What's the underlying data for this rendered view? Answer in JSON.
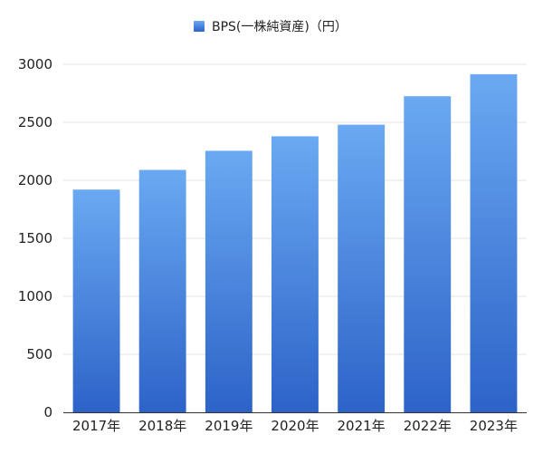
{
  "chart_data": {
    "type": "bar",
    "title": "",
    "xlabel": "",
    "ylabel": "",
    "categories": [
      "2017年",
      "2018年",
      "2019年",
      "2020年",
      "2021年",
      "2022年",
      "2023年"
    ],
    "series": [
      {
        "name": "BPS(一株純資産)（円）",
        "values": [
          1920,
          2090,
          2255,
          2380,
          2480,
          2725,
          2915
        ]
      }
    ],
    "ylim": [
      0,
      3000
    ],
    "yticks": [
      0,
      500,
      1000,
      1500,
      2000,
      2500,
      3000
    ],
    "legend_position": "top-center",
    "grid": true,
    "colors": {
      "bar_top": "#6aa9f2",
      "bar_bottom": "#2d63c8",
      "grid": "#e3e3e3",
      "axis": "#333333"
    }
  }
}
